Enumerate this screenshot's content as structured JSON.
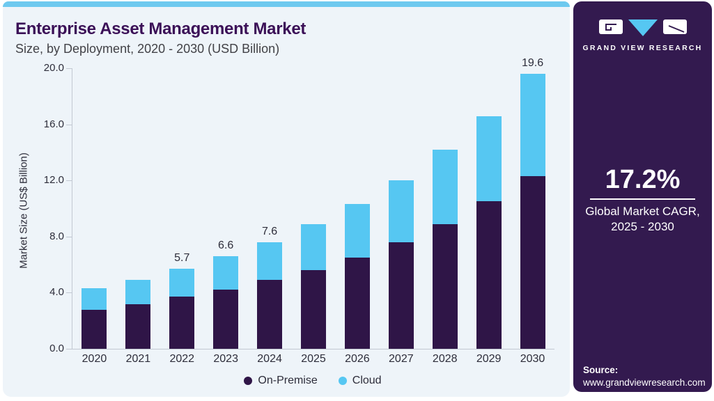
{
  "header": {
    "title": "Enterprise Asset Management Market",
    "subtitle": "Size, by Deployment, 2020 - 2030 (USD Billion)"
  },
  "chart_data": {
    "type": "bar",
    "stacked": true,
    "title": "Enterprise Asset Management Market Size, by Deployment, 2020 - 2030 (USD Billion)",
    "categories": [
      "2020",
      "2021",
      "2022",
      "2023",
      "2024",
      "2025",
      "2026",
      "2027",
      "2028",
      "2029",
      "2030"
    ],
    "series": [
      {
        "name": "On-Premise",
        "color": "#2f1547",
        "values": [
          2.8,
          3.2,
          3.7,
          4.2,
          4.9,
          5.6,
          6.5,
          7.6,
          8.9,
          10.5,
          12.3
        ]
      },
      {
        "name": "Cloud",
        "color": "#56c7f2",
        "values": [
          1.5,
          1.7,
          2.0,
          2.4,
          2.7,
          3.3,
          3.8,
          4.4,
          5.3,
          6.1,
          7.3
        ]
      }
    ],
    "totals": [
      4.3,
      4.9,
      5.7,
      6.6,
      7.6,
      8.9,
      10.3,
      12.0,
      14.2,
      16.6,
      19.6
    ],
    "bar_labels": [
      "",
      "",
      "5.7",
      "6.6",
      "7.6",
      "",
      "",
      "",
      "",
      "",
      "19.6"
    ],
    "xlabel": "",
    "ylabel": "Market Size (US$ Billion)",
    "ylim": [
      0,
      20
    ],
    "yticks": [
      "0.0",
      "4.0",
      "8.0",
      "12.0",
      "16.0",
      "20.0"
    ],
    "grid": false,
    "legend_position": "bottom-center"
  },
  "sidebar": {
    "brand_name": "GRAND VIEW RESEARCH",
    "stat_value": "17.2%",
    "stat_caption_line1": "Global Market CAGR,",
    "stat_caption_line2": "2025 - 2030",
    "source_label": "Source:",
    "source_url": "www.grandviewresearch.com"
  },
  "colors": {
    "panel_bg": "#eef4f9",
    "top_strip": "#6ec9ef",
    "on_premise": "#2f1547",
    "cloud": "#56c7f2",
    "sidebar_bg": "#331a4f",
    "title_text": "#3b1057",
    "subtitle_text": "#424247",
    "axis": "#c2c8d2",
    "tick_text": "#2d2d3a"
  }
}
